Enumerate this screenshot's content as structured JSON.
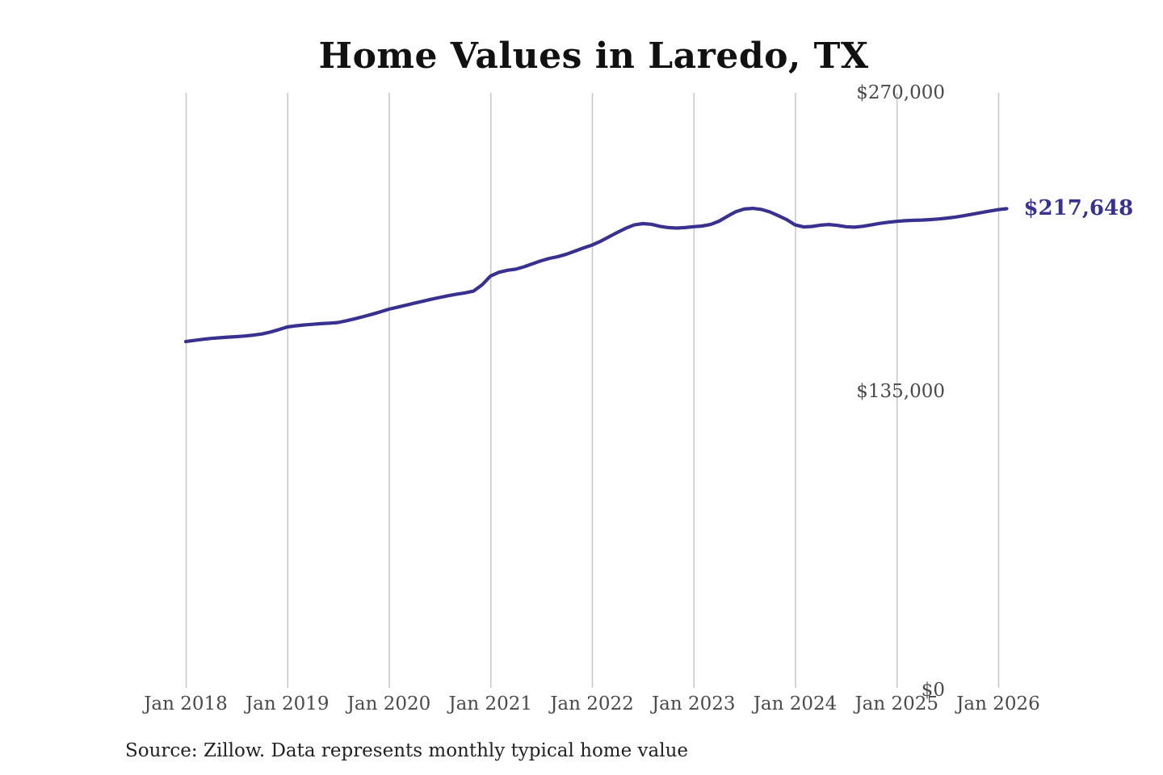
{
  "chart_data": {
    "type": "line",
    "title": "Home Values in Laredo, TX",
    "xlabel": "",
    "ylabel": "",
    "x_start": "2018-01",
    "x_end": "2026-02",
    "x_interval": "month",
    "xticks": [
      "Jan 2018",
      "Jan 2019",
      "Jan 2020",
      "Jan 2021",
      "Jan 2022",
      "Jan 2023",
      "Jan 2024",
      "Jan 2025",
      "Jan 2026"
    ],
    "yticks": [
      {
        "label": "$270,000",
        "value": 270000
      },
      {
        "label": "$135,000",
        "value": 135000
      },
      {
        "label": "$0",
        "value": 0
      }
    ],
    "ylim": [
      0,
      270000
    ],
    "grid": "vertical-only",
    "legend": "none",
    "end_annotation": "$217,648",
    "latest_value": 217648,
    "source": "Source: Zillow. Data represents monthly typical home value",
    "colors": {
      "line": "#39318f",
      "annotation": "#39318f",
      "grid": "#c9c9c9",
      "tick_text": "#4a4a4a",
      "title_text": "#111111",
      "source_text": "#222222",
      "background": "#ffffff"
    },
    "series": [
      {
        "name": "Monthly typical home value",
        "values": [
          157600,
          158100,
          158600,
          159000,
          159300,
          159600,
          159800,
          160100,
          160500,
          161000,
          161900,
          163000,
          164200,
          164700,
          165100,
          165400,
          165700,
          165900,
          166200,
          167000,
          167900,
          168900,
          169900,
          171000,
          172200,
          173100,
          174000,
          174900,
          175800,
          176700,
          177500,
          178300,
          179000,
          179600,
          180400,
          183200,
          187200,
          188900,
          189800,
          190300,
          191400,
          192800,
          194100,
          195200,
          196000,
          197100,
          198500,
          199900,
          201200,
          202900,
          204900,
          206900,
          208800,
          210300,
          210900,
          210600,
          209700,
          209100,
          208900,
          209100,
          209500,
          209800,
          210500,
          212000,
          214200,
          216300,
          217500,
          217800,
          217300,
          216200,
          214500,
          212700,
          210300,
          209400,
          209600,
          210200,
          210500,
          210100,
          209500,
          209300,
          209700,
          210300,
          211000,
          211500,
          211900,
          212200,
          212400,
          212500,
          212700,
          213000,
          213400,
          213900,
          214500,
          215200,
          215900,
          216600,
          217200,
          217648
        ]
      }
    ]
  }
}
